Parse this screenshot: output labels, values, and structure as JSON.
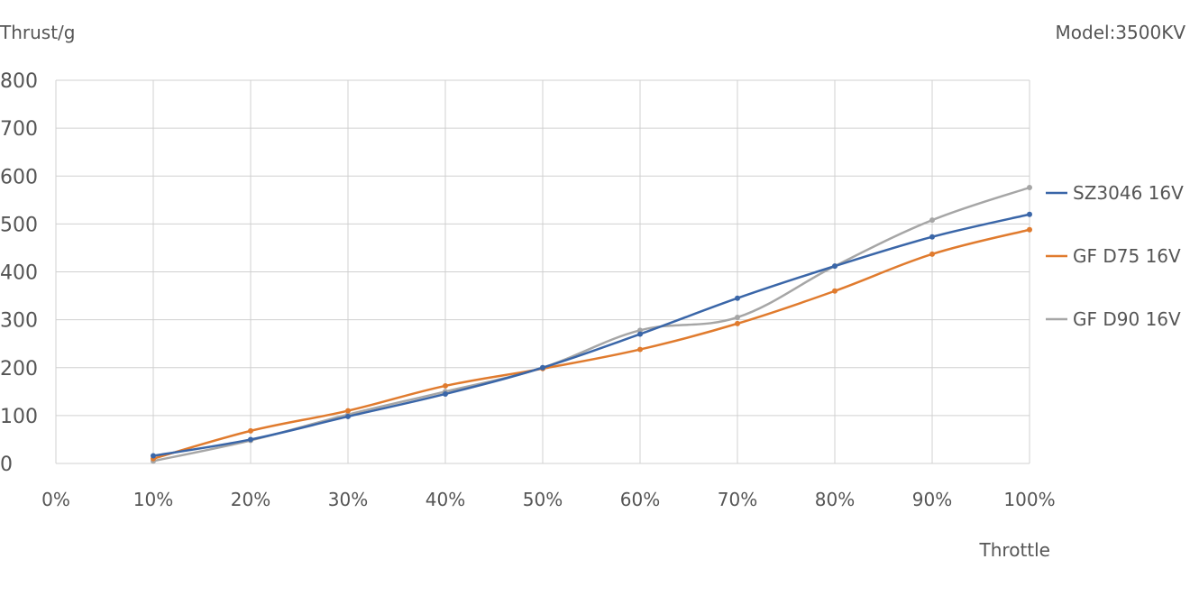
{
  "chart_data": {
    "type": "line",
    "title": "",
    "ylabel": "Thrust/g",
    "xlabel": "Throttle",
    "model_label": "Model:3500KV",
    "categories": [
      "0%",
      "10%",
      "20%",
      "30%",
      "40%",
      "50%",
      "60%",
      "70%",
      "80%",
      "90%",
      "100%"
    ],
    "y_ticks": [
      "0",
      "100",
      "200",
      "300",
      "400",
      "500",
      "600",
      "700",
      "800"
    ],
    "ylim": [
      0,
      800
    ],
    "grid": true,
    "legend_position": "right",
    "series": [
      {
        "name": "SZ3046 16V",
        "color": "#3a66a8",
        "values": [
          null,
          16,
          50,
          98,
          145,
          200,
          270,
          345,
          412,
          473,
          520
        ]
      },
      {
        "name": "GF D75 16V",
        "color": "#e07b2e",
        "values": [
          null,
          10,
          68,
          110,
          162,
          198,
          238,
          292,
          360,
          437,
          488
        ]
      },
      {
        "name": "GF D90 16V",
        "color": "#a6a6a6",
        "values": [
          null,
          5,
          48,
          102,
          150,
          200,
          278,
          305,
          412,
          508,
          576
        ]
      }
    ]
  }
}
